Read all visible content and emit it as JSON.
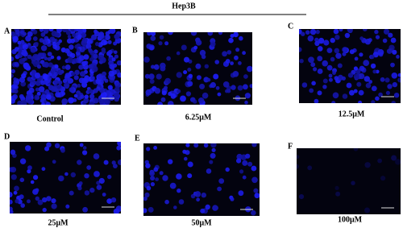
{
  "header": {
    "title": "Hep3B"
  },
  "panels": [
    {
      "letter": "A",
      "caption": "Control"
    },
    {
      "letter": "B",
      "caption": "6.25μM"
    },
    {
      "letter": "C",
      "caption": "12.5μM"
    },
    {
      "letter": "D",
      "caption": "25μM"
    },
    {
      "letter": "E",
      "caption": "50μM"
    },
    {
      "letter": "F",
      "caption": "100μM"
    }
  ]
}
